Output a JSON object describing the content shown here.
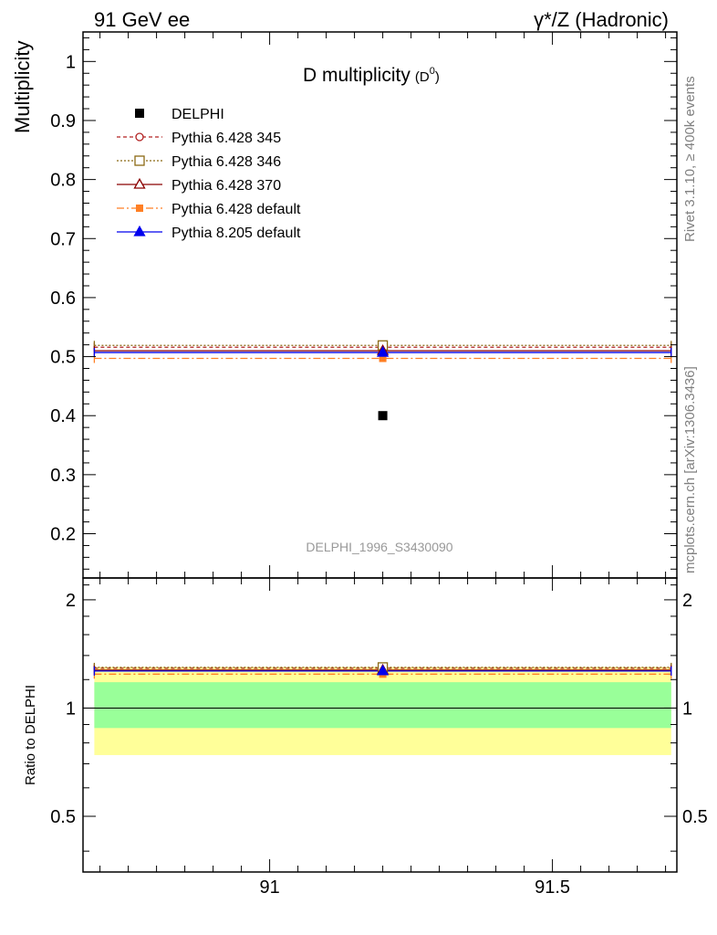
{
  "header": {
    "left": "91 GeV ee",
    "right": "γ*/Z (Hadronic)"
  },
  "side_labels": {
    "rivet": "Rivet 3.1.10, ≥ 400k events",
    "mcplots": "mcplots.cern.ch [arXiv:1306.3436]"
  },
  "chart_data": {
    "type": "scatter",
    "title": "D multiplicity",
    "title_sub": "(D",
    "title_sup": "0",
    "title_close": ")",
    "analysis_id": "DELPHI_1996_S3430090",
    "ylabel": "Multiplicity",
    "ratio_ylabel": "Ratio to DELPHI",
    "xlim": [
      90.67,
      91.72
    ],
    "ylim": [
      0.125,
      1.05
    ],
    "ratio_ylim": [
      0.35,
      2.3
    ],
    "x_major_ticks": [
      91,
      91.5
    ],
    "x_tick_labels": [
      "91",
      "91.5"
    ],
    "y_ticks": [
      0.2,
      0.3,
      0.4,
      0.5,
      0.6,
      0.7,
      0.8,
      0.9,
      1
    ],
    "y_tick_labels": [
      "0.2",
      "0.3",
      "0.4",
      "0.5",
      "0.6",
      "0.7",
      "0.8",
      "0.9",
      "1"
    ],
    "ratio_ticks": [
      0.5,
      1,
      2
    ],
    "ratio_tick_labels": [
      "0.5",
      "1",
      "2"
    ],
    "bin": {
      "low": 90.69,
      "high": 91.71,
      "center": 91.2
    },
    "data": {
      "name": "DELPHI",
      "x": 91.2,
      "y": 0.4,
      "ratio_band_inner": [
        0.88,
        1.18
      ],
      "ratio_band_outer": [
        0.74,
        1.3
      ]
    },
    "series": [
      {
        "name": "Pythia 6.428 345",
        "value": 0.516,
        "color": "#b22222",
        "marker": "open-circle",
        "dash": "4,3"
      },
      {
        "name": "Pythia 6.428 346",
        "value": 0.519,
        "color": "#8b6914",
        "marker": "open-square",
        "dash": "2,2"
      },
      {
        "name": "Pythia 6.428 370",
        "value": 0.51,
        "color": "#8b0000",
        "marker": "open-triangle",
        "dash": ""
      },
      {
        "name": "Pythia 6.428 default",
        "value": 0.497,
        "color": "#ff7f24",
        "marker": "filled-square",
        "dash": "8,3,2,3"
      },
      {
        "name": "Pythia 8.205 default",
        "value": 0.507,
        "color": "#0000ee",
        "marker": "filled-triangle",
        "dash": ""
      }
    ]
  }
}
